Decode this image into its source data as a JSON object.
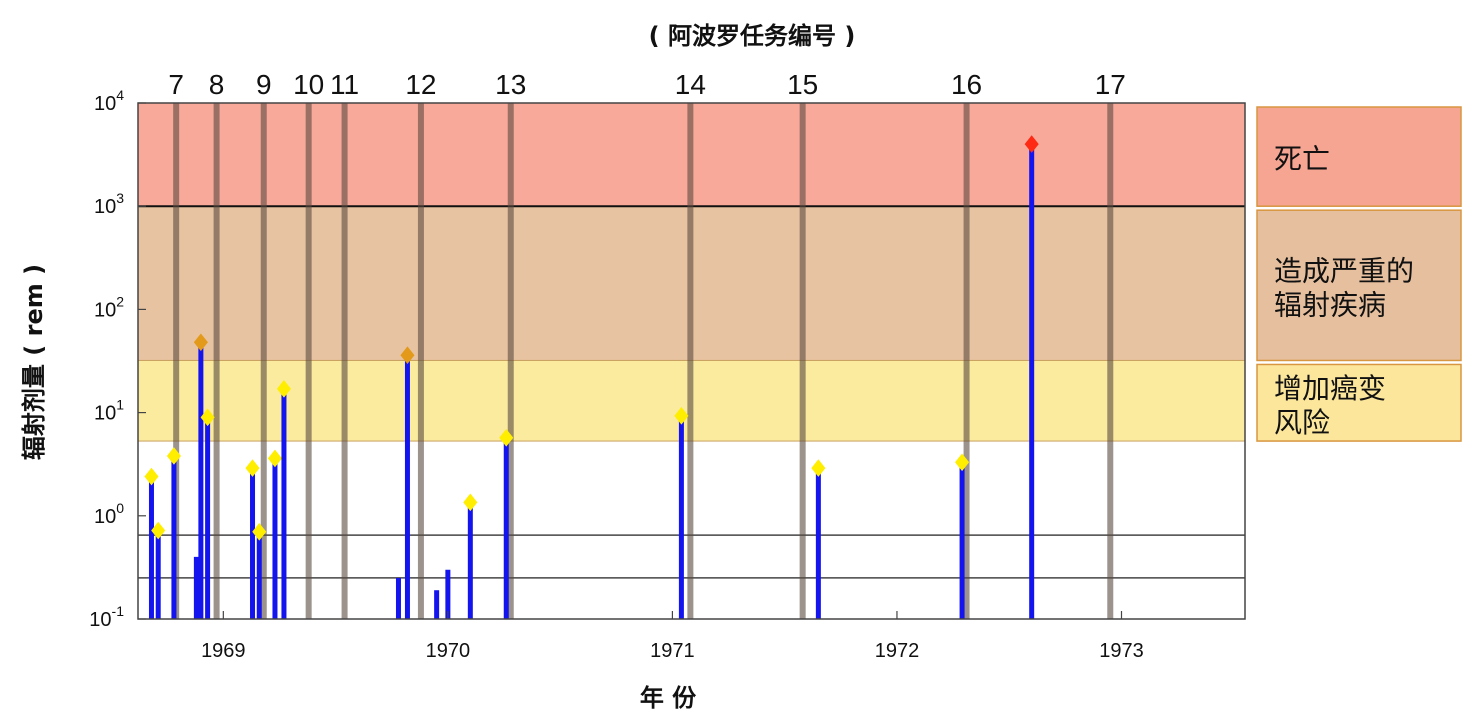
{
  "chart_data": {
    "type": "bar",
    "title": "",
    "top_axis_label": "( 阿波罗任务编号 )",
    "xlabel": "年 份",
    "ylabel": "辐射剂量 ( rem )",
    "yscale": "log",
    "ylim": [
      0.1,
      10000
    ],
    "xlim": [
      1968.62,
      1973.55
    ],
    "x_ticks": [
      {
        "value": 1969,
        "label": "1969"
      },
      {
        "value": 1970,
        "label": "1970"
      },
      {
        "value": 1971,
        "label": "1971"
      },
      {
        "value": 1972,
        "label": "1972"
      },
      {
        "value": 1973,
        "label": "1973"
      }
    ],
    "y_ticks": [
      {
        "value": 0.1,
        "base": "10",
        "exp": "-1"
      },
      {
        "value": 1,
        "base": "10",
        "exp": "0"
      },
      {
        "value": 10,
        "base": "10",
        "exp": "1"
      },
      {
        "value": 100,
        "base": "10",
        "exp": "2"
      },
      {
        "value": 1000,
        "base": "10",
        "exp": "3"
      },
      {
        "value": 10000,
        "base": "10",
        "exp": "4"
      }
    ],
    "missions": [
      {
        "label": "7",
        "date": 1968.79
      },
      {
        "label": "8",
        "date": 1968.97
      },
      {
        "label": "9",
        "date": 1969.18
      },
      {
        "label": "10",
        "date": 1969.38
      },
      {
        "label": "11",
        "date": 1969.54
      },
      {
        "label": "12",
        "date": 1969.88
      },
      {
        "label": "13",
        "date": 1970.28
      },
      {
        "label": "14",
        "date": 1971.08
      },
      {
        "label": "15",
        "date": 1971.58
      },
      {
        "label": "16",
        "date": 1972.31
      },
      {
        "label": "17",
        "date": 1972.95
      }
    ],
    "bands": [
      {
        "label": "死亡",
        "from": 1000,
        "to": 10000,
        "color": "#f9a99a",
        "box_color": "#f6a593"
      },
      {
        "label": "造成严重的辐射疾病",
        "lines": [
          "造成严重的",
          "辐射疾病"
        ],
        "from": 32,
        "to": 1000,
        "color": "#e8c3a1",
        "box_color": "#e6c09e"
      },
      {
        "label": "增加癌变风险",
        "lines": [
          "增加癌变",
          "风险"
        ],
        "from": 5.3,
        "to": 32,
        "color": "#faeb9f",
        "box_color": "#fbe69c"
      }
    ],
    "reference_lines": [
      0.65,
      0.25
    ],
    "series": [
      {
        "values": [
          {
            "x": 1968.68,
            "y": 2.4,
            "marker": true
          },
          {
            "x": 1968.71,
            "y": 0.72,
            "marker": true
          },
          {
            "x": 1968.78,
            "y": 3.8,
            "marker": true
          },
          {
            "x": 1968.88,
            "y": 0.4,
            "marker": false
          },
          {
            "x": 1968.9,
            "y": 48,
            "marker": true
          },
          {
            "x": 1968.93,
            "y": 9,
            "marker": true
          },
          {
            "x": 1969.13,
            "y": 2.9,
            "marker": true
          },
          {
            "x": 1969.16,
            "y": 0.7,
            "marker": true
          },
          {
            "x": 1969.23,
            "y": 3.6,
            "marker": true
          },
          {
            "x": 1969.27,
            "y": 17,
            "marker": true
          },
          {
            "x": 1969.78,
            "y": 0.25,
            "marker": false
          },
          {
            "x": 1969.82,
            "y": 36,
            "marker": true
          },
          {
            "x": 1969.95,
            "y": 0.19,
            "marker": false
          },
          {
            "x": 1970.0,
            "y": 0.3,
            "marker": false
          },
          {
            "x": 1970.1,
            "y": 1.35,
            "marker": true
          },
          {
            "x": 1970.26,
            "y": 5.7,
            "marker": true
          },
          {
            "x": 1971.04,
            "y": 9.3,
            "marker": true
          },
          {
            "x": 1971.65,
            "y": 2.9,
            "marker": true
          },
          {
            "x": 1972.29,
            "y": 3.3,
            "marker": true
          },
          {
            "x": 1972.6,
            "y": 4000,
            "marker": true
          }
        ]
      }
    ]
  }
}
